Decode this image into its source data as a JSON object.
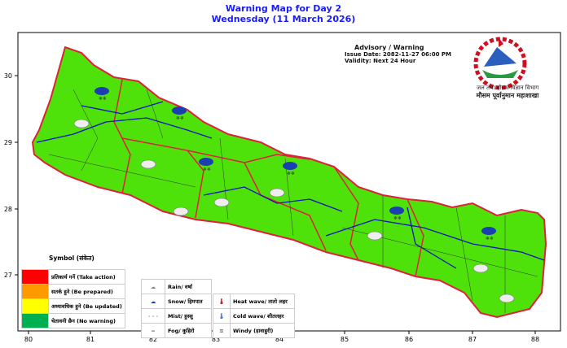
{
  "title": {
    "line1": "Warning Map for Day 2",
    "line2": "Wednesday (11 March 2026)"
  },
  "advisory": {
    "heading": "Advisory / Warning",
    "issue_date": "Issue Date: 2082-11-27 06:00 PM",
    "validity": "Validity: Next 24 Hour"
  },
  "organization": {
    "line1": "जल तथा मौसम विज्ञान विभाग",
    "line2": "मौसम पूर्वानुमान महाशाखा"
  },
  "axes": {
    "x_ticks": [
      "80",
      "81",
      "82",
      "83",
      "84",
      "85",
      "86",
      "87",
      "88"
    ],
    "y_ticks": [
      "30",
      "29",
      "28",
      "27"
    ]
  },
  "map_colors": {
    "land": "#4ee20a",
    "province_border": "#e0203a",
    "district_border": "#222",
    "river": "#1010c0"
  },
  "legend": {
    "title": "Symbol (संकेत)",
    "levels": [
      {
        "label": "प्रतिकार्य गर्ने (Take action)",
        "color": "#ff0000"
      },
      {
        "label": "सतर्क हुने (Be prepared)",
        "color": "#ff9900"
      },
      {
        "label": "अध्यावधिक हुने (Be updated)",
        "color": "#ffff00"
      },
      {
        "label": "चेतावनी छैन (No warning)",
        "color": "#00b050"
      }
    ],
    "symbols": [
      {
        "icon": "rain-icon",
        "label": "Rain/ वर्षा"
      },
      {
        "icon": "snow-icon",
        "label": "Snow/ हिमपात"
      },
      {
        "icon": "mist-icon",
        "label": "Mist/ हुस्सु"
      },
      {
        "icon": "fog-icon",
        "label": "Fog/ कुहिरो"
      },
      {
        "icon": "heat-wave-icon",
        "label": "Heat wave/ तातो लहर"
      },
      {
        "icon": "cold-wave-icon",
        "label": "Cold wave/ शीतलहर"
      },
      {
        "icon": "windy-icon",
        "label": "Windy (हावाहुरी)"
      }
    ]
  },
  "warning_level": "No warning"
}
